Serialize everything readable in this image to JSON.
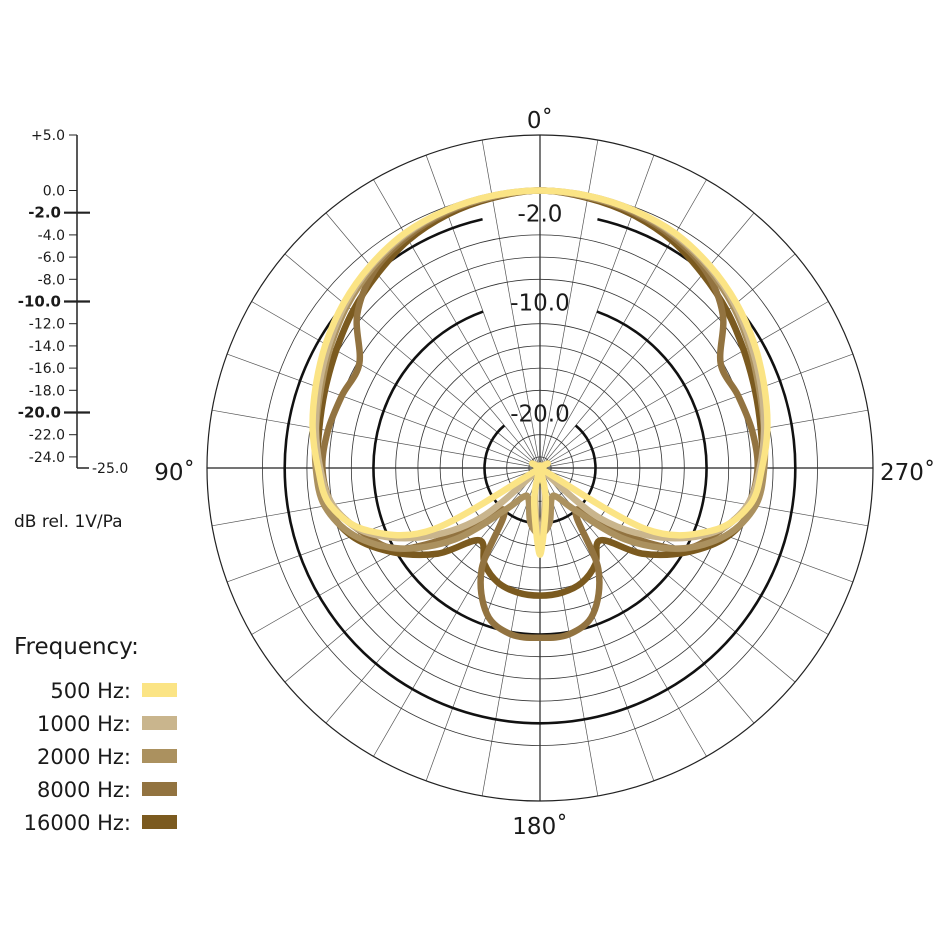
{
  "chart_data": {
    "type": "polar-line",
    "angle_labels": [
      {
        "angle": 0,
        "text": "0˚"
      },
      {
        "angle": 90,
        "text": "90˚"
      },
      {
        "angle": 180,
        "text": "180˚"
      },
      {
        "angle": 270,
        "text": "270˚"
      }
    ],
    "radial_range": [
      -25,
      5
    ],
    "radial_unit_label": "dB rel. 1V/Pa",
    "radial_ticks": [
      "+5.0",
      "0.0",
      "-2.0",
      "-4.0",
      "-6.0",
      "-8.0",
      "-10.0",
      "-12.0",
      "-14.0",
      "-16.0",
      "-18.0",
      "-20.0",
      "-22.0",
      "-24.0",
      "-25.0"
    ],
    "radial_tick_values": [
      5,
      0,
      -2,
      -4,
      -6,
      -8,
      -10,
      -12,
      -14,
      -16,
      -18,
      -20,
      -22,
      -24,
      -25
    ],
    "bold_ticks": [
      -2,
      -10,
      -20
    ],
    "ring_labels": [
      "-2.0",
      "-10.0",
      "-20.0"
    ],
    "grid": true,
    "grid_ring_step_db": 2,
    "grid_spoke_step_deg": 10,
    "angles_deg": [
      0,
      10,
      20,
      30,
      40,
      50,
      60,
      70,
      80,
      90,
      100,
      110,
      120,
      130,
      140,
      150,
      160,
      170,
      180,
      190,
      200,
      210,
      220,
      230,
      240,
      250,
      260,
      270,
      280,
      290,
      300,
      310,
      320,
      330,
      340,
      350
    ],
    "legend_title": "Frequency:",
    "legend_placement": "bottom-left",
    "series": [
      {
        "name": "500 Hz:",
        "color": "#fbe485",
        "values": [
          0,
          -0.1,
          -0.3,
          -0.6,
          -1.2,
          -1.9,
          -2.7,
          -3.5,
          -4.2,
          -5,
          -5.8,
          -8.5,
          -14,
          -25,
          -25,
          -25,
          -25,
          -22,
          -17.2,
          -22,
          -25,
          -25,
          -25,
          -25,
          -14,
          -8.5,
          -5.8,
          -5,
          -4.2,
          -3.5,
          -2.7,
          -1.9,
          -1.2,
          -0.6,
          -0.3,
          -0.1
        ]
      },
      {
        "name": "1000 Hz:",
        "color": "#c9b58d",
        "values": [
          0,
          -0.1,
          -0.3,
          -0.7,
          -1.3,
          -2.1,
          -3,
          -3.8,
          -4.5,
          -5.2,
          -6,
          -8.2,
          -12.5,
          -18,
          -25,
          -25,
          -25,
          -22.5,
          -18,
          -22.5,
          -25,
          -25,
          -25,
          -18,
          -12.5,
          -8.2,
          -6,
          -5.2,
          -4.5,
          -3.8,
          -3,
          -2.1,
          -1.3,
          -0.7,
          -0.3,
          -0.1
        ]
      },
      {
        "name": "2000 Hz:",
        "color": "#ab915f",
        "values": [
          0,
          -0.2,
          -0.4,
          -0.8,
          -1.5,
          -2.3,
          -3.2,
          -4,
          -4.5,
          -4.8,
          -5.3,
          -7.2,
          -10.5,
          -15,
          -20,
          -22,
          -22,
          -20,
          -19,
          -20,
          -22,
          -22,
          -20,
          -15,
          -10.5,
          -7.2,
          -5.3,
          -4.8,
          -4.5,
          -4,
          -3.2,
          -2.3,
          -1.5,
          -0.8,
          -0.4,
          -0.2
        ]
      },
      {
        "name": "8000 Hz:",
        "color": "#927340",
        "values": [
          0,
          -0.2,
          -0.5,
          -1,
          -1.8,
          -3.5,
          -6.2,
          -6,
          -5.6,
          -5.4,
          -6,
          -8,
          -10.4,
          -16,
          -20,
          -14.5,
          -11,
          -9.8,
          -9.7,
          -9.8,
          -11,
          -14.5,
          -20,
          -16,
          -10.4,
          -8,
          -6,
          -5.4,
          -5.6,
          -6,
          -6.2,
          -3.5,
          -1.8,
          -1,
          -0.5,
          -0.2
        ]
      },
      {
        "name": "16000 Hz:",
        "color": "#7b5a1f",
        "values": [
          0,
          -0.3,
          -0.7,
          -1.3,
          -2.2,
          -3,
          -3.8,
          -4.4,
          -4.8,
          -5,
          -5.5,
          -7,
          -9.8,
          -13,
          -16.5,
          -15,
          -14,
          -13.6,
          -13.5,
          -13.6,
          -14,
          -15,
          -16.5,
          -13,
          -9.8,
          -7,
          -5.5,
          -5,
          -4.8,
          -4.4,
          -3.8,
          -3,
          -2.2,
          -1.3,
          -0.7,
          -0.3
        ]
      }
    ]
  }
}
